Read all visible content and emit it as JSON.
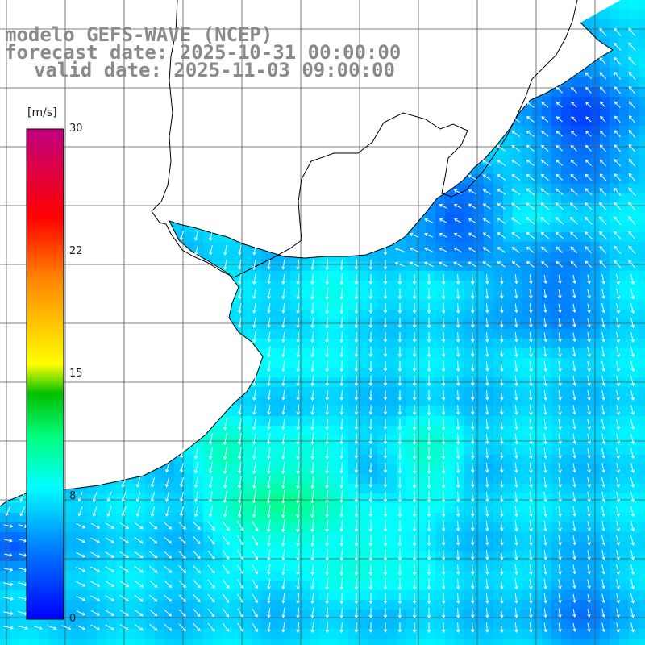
{
  "header": {
    "model": "modelo GEFS-WAVE (NCEP)",
    "forecast": "forecast date: 2025-10-31 00:00:00",
    "valid": "valid date: 2025-11-03 09:00:00"
  },
  "colorbar": {
    "unit": "[m/s]",
    "ticks": [
      "30",
      "22",
      "15",
      "8",
      "0"
    ],
    "tick_values": [
      30,
      22,
      15,
      8,
      0
    ],
    "range": [
      0,
      30
    ],
    "colors": [
      "#0000ff",
      "#00a0ff",
      "#00ffff",
      "#00ff80",
      "#00c000",
      "#ffff00",
      "#ff8000",
      "#ff0000",
      "#c00080"
    ]
  },
  "map": {
    "variable": "wind speed",
    "field_color": "#00aaff",
    "land_color": "#ffffff",
    "coast_color": "#000000",
    "grid_color": "#555555",
    "vector_color": "#ffffff"
  }
}
